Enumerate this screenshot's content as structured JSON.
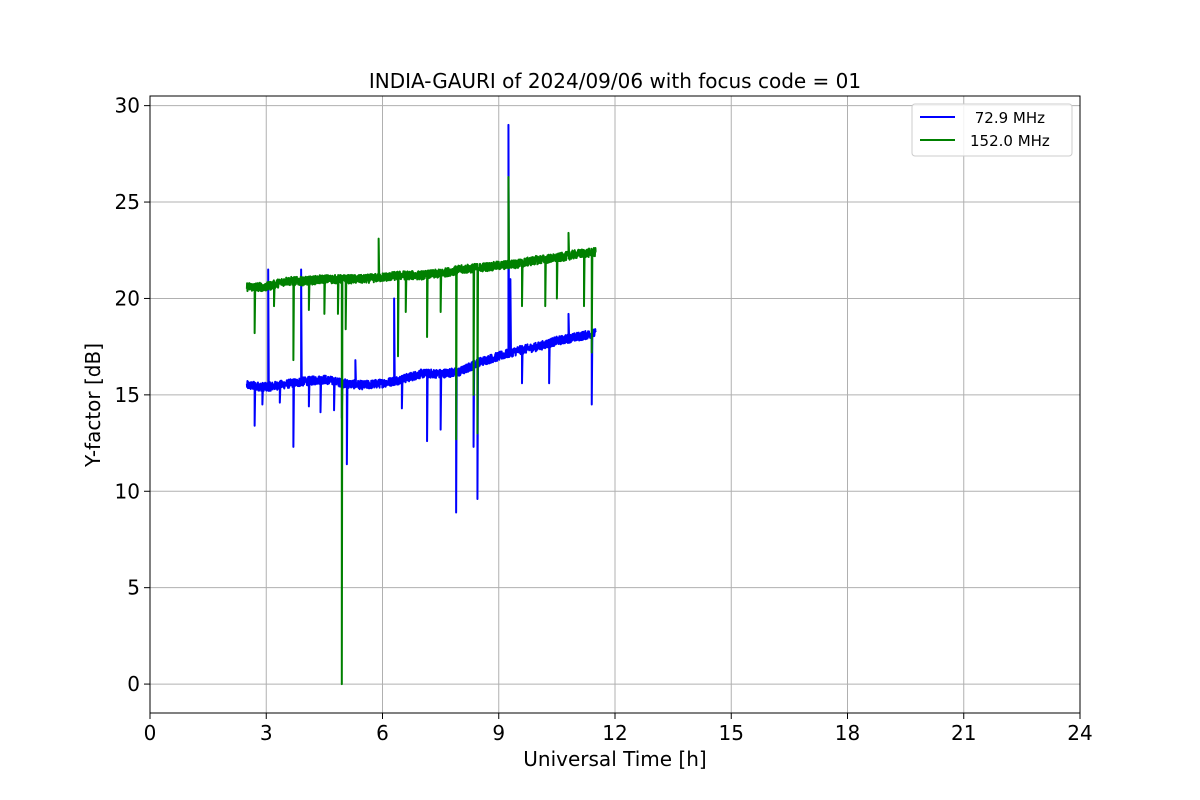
{
  "chart_data": {
    "type": "line",
    "title": "INDIA-GAURI of 2024/09/06 with focus code = 01",
    "xlabel": "Universal Time [h]",
    "ylabel": "Y-factor [dB]",
    "xlim": [
      0,
      24
    ],
    "ylim": [
      -1.5,
      30.5
    ],
    "xticks": [
      0,
      3,
      6,
      9,
      12,
      15,
      18,
      21,
      24
    ],
    "yticks": [
      0,
      5,
      10,
      15,
      20,
      25,
      30
    ],
    "grid": true,
    "legend_position": "top-right",
    "series": [
      {
        "name": " 72.9 MHz",
        "color": "#0000ff",
        "baseline": [
          [
            2.5,
            15.5
          ],
          [
            3.0,
            15.4
          ],
          [
            4.0,
            15.7
          ],
          [
            4.5,
            15.8
          ],
          [
            5.0,
            15.6
          ],
          [
            5.5,
            15.5
          ],
          [
            6.0,
            15.6
          ],
          [
            6.5,
            15.8
          ],
          [
            7.0,
            16.1
          ],
          [
            7.5,
            16.1
          ],
          [
            8.0,
            16.2
          ],
          [
            8.5,
            16.7
          ],
          [
            9.0,
            17.0
          ],
          [
            9.5,
            17.3
          ],
          [
            10.0,
            17.5
          ],
          [
            10.5,
            17.8
          ],
          [
            11.0,
            18.0
          ],
          [
            11.5,
            18.2
          ]
        ],
        "spikes": [
          [
            2.7,
            13.4
          ],
          [
            2.9,
            14.5
          ],
          [
            3.05,
            21.5
          ],
          [
            3.35,
            14.6
          ],
          [
            3.7,
            12.3
          ],
          [
            3.9,
            21.5
          ],
          [
            4.1,
            14.4
          ],
          [
            4.4,
            14.1
          ],
          [
            4.75,
            14.2
          ],
          [
            4.95,
            13.8
          ],
          [
            5.08,
            11.4
          ],
          [
            5.3,
            16.8
          ],
          [
            6.3,
            20.0
          ],
          [
            6.5,
            14.3
          ],
          [
            7.15,
            12.6
          ],
          [
            7.5,
            13.2
          ],
          [
            7.9,
            8.9
          ],
          [
            8.35,
            12.3
          ],
          [
            8.45,
            9.6
          ],
          [
            9.25,
            29.0
          ],
          [
            9.3,
            21.0
          ],
          [
            9.6,
            15.6
          ],
          [
            10.3,
            15.6
          ],
          [
            10.8,
            19.2
          ],
          [
            11.4,
            14.5
          ]
        ]
      },
      {
        "name": "152.0 MHz",
        "color": "#008000",
        "baseline": [
          [
            2.5,
            20.6
          ],
          [
            3.0,
            20.6
          ],
          [
            3.5,
            20.9
          ],
          [
            4.0,
            20.9
          ],
          [
            4.5,
            21.0
          ],
          [
            5.0,
            21.0
          ],
          [
            5.5,
            21.0
          ],
          [
            6.0,
            21.1
          ],
          [
            6.5,
            21.2
          ],
          [
            7.0,
            21.2
          ],
          [
            7.5,
            21.3
          ],
          [
            8.0,
            21.5
          ],
          [
            8.5,
            21.6
          ],
          [
            9.0,
            21.7
          ],
          [
            9.5,
            21.8
          ],
          [
            10.0,
            22.0
          ],
          [
            10.5,
            22.1
          ],
          [
            11.0,
            22.3
          ],
          [
            11.5,
            22.4
          ]
        ],
        "spikes": [
          [
            2.7,
            18.2
          ],
          [
            3.2,
            19.6
          ],
          [
            3.7,
            16.8
          ],
          [
            4.1,
            19.4
          ],
          [
            4.5,
            19.2
          ],
          [
            4.85,
            19.2
          ],
          [
            4.95,
            0.0
          ],
          [
            5.05,
            18.4
          ],
          [
            5.9,
            23.1
          ],
          [
            6.4,
            17.0
          ],
          [
            6.6,
            19.3
          ],
          [
            7.15,
            18.0
          ],
          [
            7.5,
            19.3
          ],
          [
            7.9,
            12.7
          ],
          [
            8.35,
            15.0
          ],
          [
            8.45,
            13.0
          ],
          [
            9.25,
            26.3
          ],
          [
            9.6,
            19.6
          ],
          [
            10.2,
            19.6
          ],
          [
            10.5,
            20.0
          ],
          [
            10.8,
            23.4
          ],
          [
            11.2,
            19.6
          ],
          [
            11.4,
            17.2
          ]
        ]
      }
    ]
  }
}
